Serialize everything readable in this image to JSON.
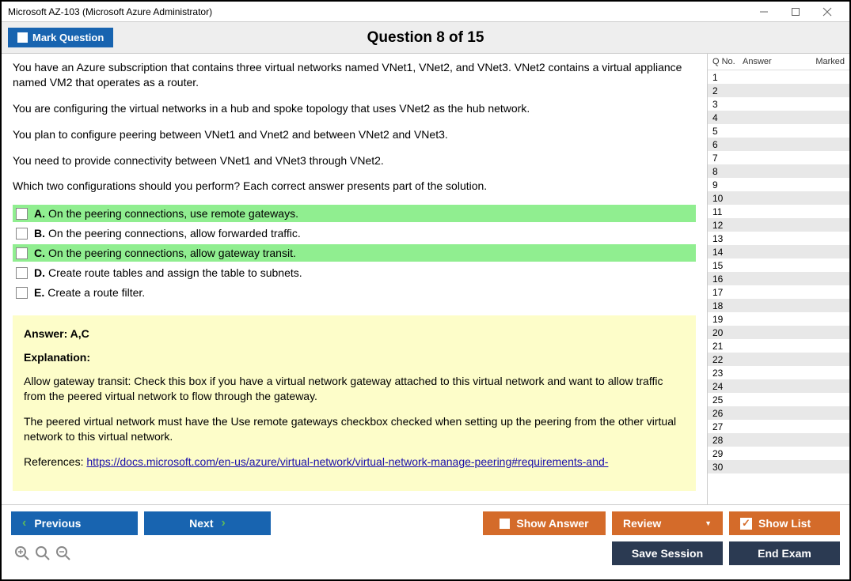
{
  "window": {
    "title": "Microsoft AZ-103 (Microsoft Azure Administrator)"
  },
  "header": {
    "mark_label": "Mark Question",
    "question_title": "Question 8 of 15"
  },
  "question": {
    "paragraphs": [
      "You have an Azure subscription that contains three virtual networks named VNet1, VNet2, and VNet3. VNet2 contains a virtual appliance named VM2 that operates as a router.",
      "You are configuring the virtual networks in a hub and spoke topology that uses VNet2 as the hub network.",
      "You plan to configure peering between VNet1 and Vnet2 and between VNet2 and VNet3.",
      "You need to provide connectivity between VNet1 and VNet3 through VNet2.",
      "Which two configurations should you perform? Each correct answer presents part of the solution."
    ],
    "options": [
      {
        "letter": "A.",
        "text": "On the peering connections, use remote gateways.",
        "highlighted": true
      },
      {
        "letter": "B.",
        "text": "On the peering connections, allow forwarded traffic.",
        "highlighted": false
      },
      {
        "letter": "C.",
        "text": "On the peering connections, allow gateway transit.",
        "highlighted": true
      },
      {
        "letter": "D.",
        "text": "Create route tables and assign the table to subnets.",
        "highlighted": false
      },
      {
        "letter": "E.",
        "text": "Create a route filter.",
        "highlighted": false
      }
    ]
  },
  "answer": {
    "answer_label": "Answer: A,C",
    "explanation_label": "Explanation:",
    "p1": "Allow gateway transit: Check this box if you have a virtual network gateway attached to this virtual network and want to allow traffic from the peered virtual network to flow through the gateway.",
    "p2": "The peered virtual network must have the Use remote gateways checkbox checked when setting up the peering from the other virtual network to this virtual network.",
    "ref_prefix": "References: ",
    "ref_link": "https://docs.microsoft.com/en-us/azure/virtual-network/virtual-network-manage-peering#requirements-and-"
  },
  "sidebar": {
    "h1": "Q No.",
    "h2": "Answer",
    "h3": "Marked",
    "count": 30
  },
  "footer": {
    "previous": "Previous",
    "next": "Next",
    "show_answer": "Show Answer",
    "review": "Review",
    "show_list": "Show List",
    "save_session": "Save Session",
    "end_exam": "End Exam"
  },
  "colors": {
    "blue": "#1864b0",
    "orange": "#d46b2a",
    "navy": "#2b3a52",
    "hl": "#90ee90",
    "ansbg": "#fdfdc9"
  }
}
